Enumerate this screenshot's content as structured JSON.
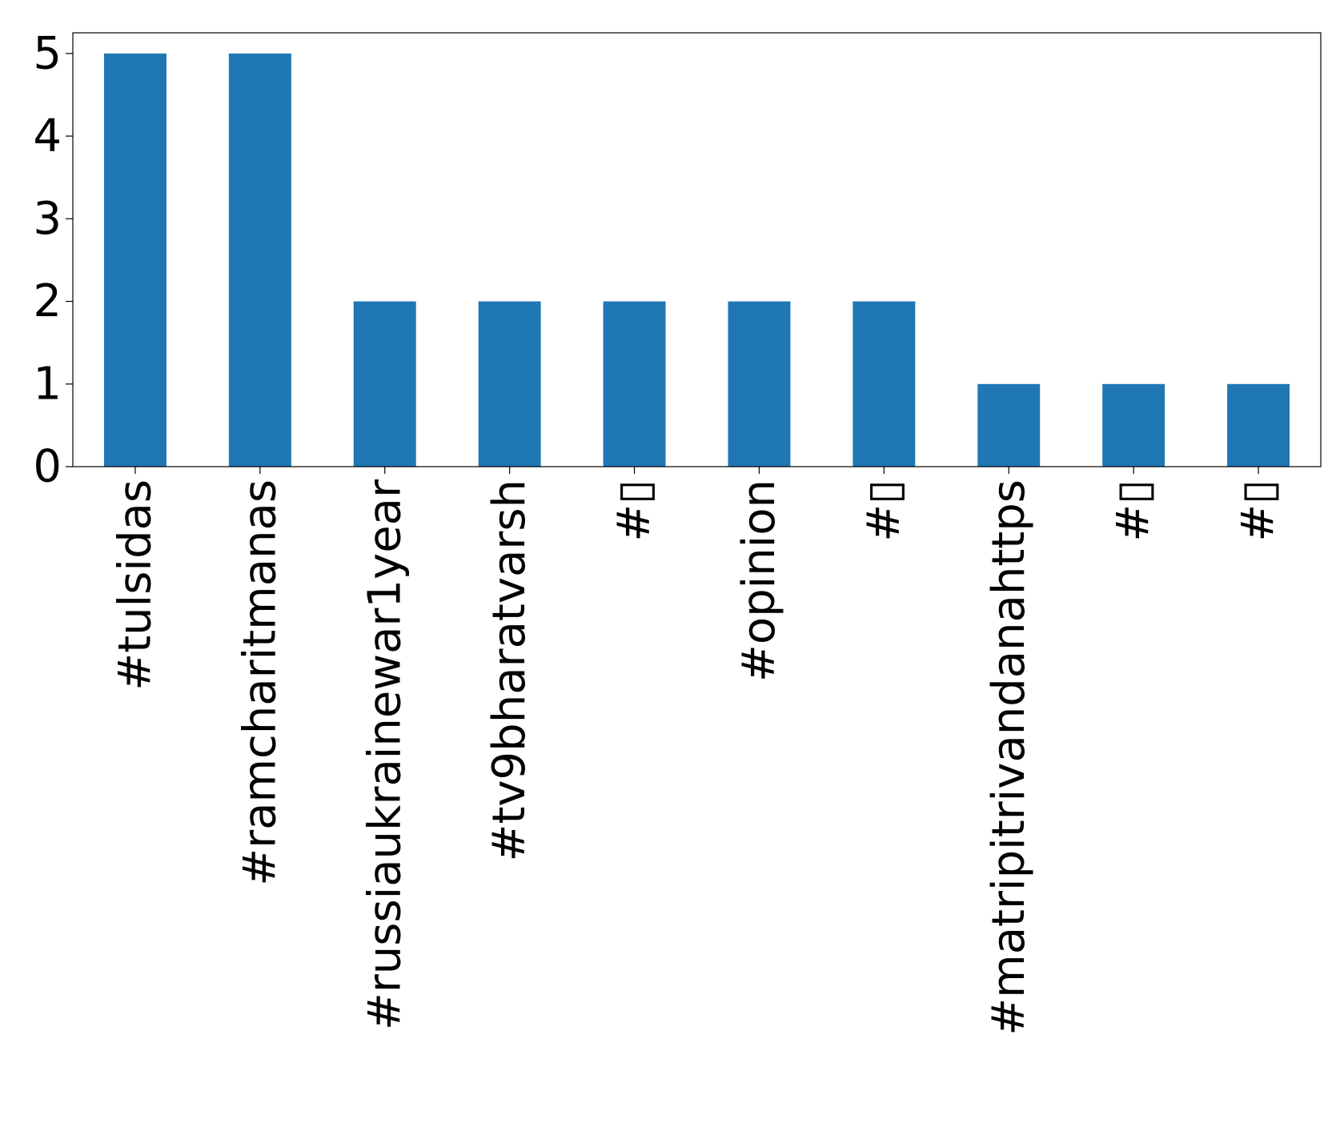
{
  "chart_data": {
    "type": "bar",
    "title": "",
    "xlabel": "",
    "ylabel": "",
    "categories": [
      "#tulsidas",
      "#ramcharitmanas",
      "#russiaukrainewar1year",
      "#tv9bharatvarsh",
      "#▯",
      "#opinion",
      "#▯",
      "#matripitrivandanahttps",
      "#▯",
      "#▯"
    ],
    "values": [
      5,
      5,
      2,
      2,
      2,
      2,
      2,
      1,
      1,
      1
    ],
    "ylim": [
      0,
      5.25
    ],
    "yticks": [
      0,
      1,
      2,
      3,
      4,
      5
    ],
    "bar_color": "#1f77b4",
    "grid": false,
    "legend": "none"
  }
}
